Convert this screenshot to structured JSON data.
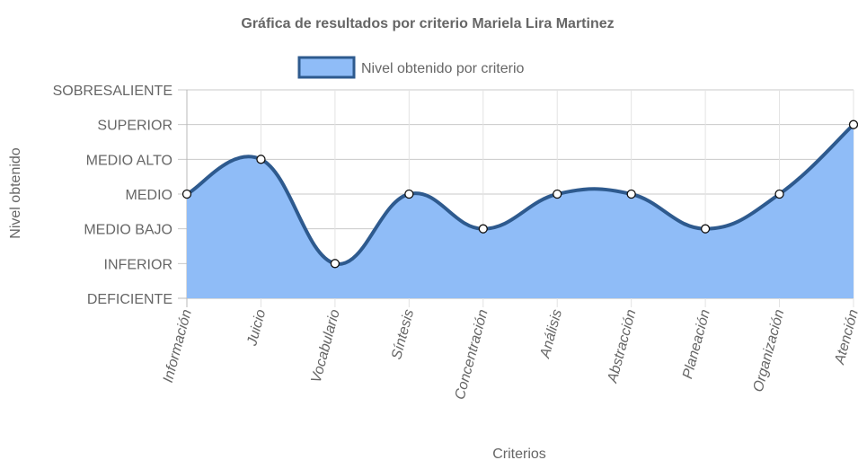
{
  "chart_data": {
    "type": "area",
    "title": "Gráfica de resultados por criterio Mariela Lira Martinez",
    "xlabel": "Criterios",
    "ylabel": "Nivel obtenido",
    "legend_position": "top",
    "grid": true,
    "y_levels": [
      "DEFICIENTE",
      "INFERIOR",
      "MEDIO BAJO",
      "MEDIO",
      "MEDIO ALTO",
      "SUPERIOR",
      "SOBRESALIENTE"
    ],
    "ylim": [
      0,
      6
    ],
    "categories": [
      "Información",
      "Juicio",
      "Vocabulario",
      "Síntesis",
      "Concentración",
      "Análisis",
      "Abstracción",
      "Planeación",
      "Organización",
      "Atención"
    ],
    "series": [
      {
        "name": "Nivel obtenido por criterio",
        "values": [
          3,
          4,
          1,
          3,
          2,
          3,
          3,
          2,
          3,
          5
        ],
        "fill_color": "#8fbcf7",
        "line_color": "#2e5a8e"
      }
    ]
  }
}
